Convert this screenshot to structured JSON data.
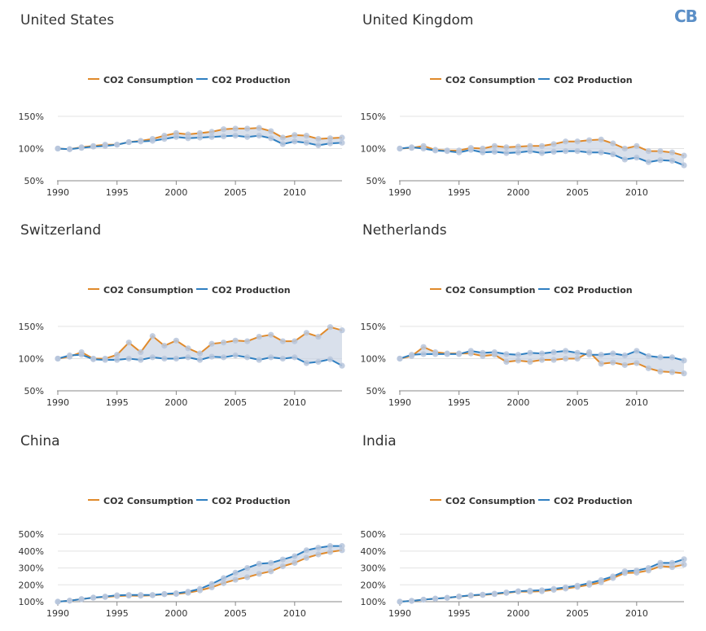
{
  "logo": "CB",
  "legend": {
    "consumption": "CO2 Consumption",
    "production": "CO2 Production"
  },
  "colors": {
    "consumption": "#e08a2b",
    "production": "#2f7fc1",
    "fill": "#c9d3e3",
    "marker": "#b7c6dc"
  },
  "chart_data": [
    {
      "type": "line",
      "title": "United States",
      "x": [
        1990,
        1991,
        1992,
        1993,
        1994,
        1995,
        1996,
        1997,
        1998,
        1999,
        2000,
        2001,
        2002,
        2003,
        2004,
        2005,
        2006,
        2007,
        2008,
        2009,
        2010,
        2011,
        2012,
        2013,
        2014
      ],
      "series": [
        {
          "name": "CO2 Consumption",
          "values": [
            100,
            99,
            102,
            104,
            106,
            106,
            110,
            112,
            115,
            120,
            124,
            122,
            124,
            126,
            130,
            131,
            131,
            132,
            127,
            117,
            121,
            120,
            115,
            116,
            117
          ]
        },
        {
          "name": "CO2 Production",
          "values": [
            100,
            99,
            101,
            103,
            104,
            106,
            110,
            111,
            112,
            115,
            118,
            116,
            117,
            118,
            119,
            120,
            118,
            120,
            116,
            107,
            111,
            109,
            105,
            108,
            109
          ]
        }
      ],
      "xticks": [
        1990,
        1995,
        2000,
        2005,
        2010
      ],
      "yticks": [
        50,
        100,
        150
      ],
      "ytick_labels": [
        "50%",
        "100%",
        "150%"
      ],
      "ylim": [
        50,
        160
      ]
    },
    {
      "type": "line",
      "title": "United Kingdom",
      "x": [
        1990,
        1991,
        1992,
        1993,
        1994,
        1995,
        1996,
        1997,
        1998,
        1999,
        2000,
        2001,
        2002,
        2003,
        2004,
        2005,
        2006,
        2007,
        2008,
        2009,
        2010,
        2011,
        2012,
        2013,
        2014
      ],
      "series": [
        {
          "name": "CO2 Consumption",
          "values": [
            100,
            101,
            104,
            98,
            97,
            97,
            101,
            100,
            104,
            102,
            103,
            104,
            104,
            107,
            111,
            111,
            113,
            114,
            108,
            100,
            104,
            96,
            96,
            94,
            89
          ]
        },
        {
          "name": "CO2 Production",
          "values": [
            100,
            102,
            100,
            97,
            96,
            94,
            98,
            94,
            95,
            93,
            94,
            96,
            93,
            95,
            96,
            96,
            94,
            94,
            91,
            83,
            86,
            79,
            82,
            81,
            74
          ]
        }
      ],
      "xticks": [
        1990,
        1995,
        2000,
        2005,
        2010
      ],
      "yticks": [
        50,
        100,
        150
      ],
      "ytick_labels": [
        "50%",
        "100%",
        "150%"
      ],
      "ylim": [
        50,
        160
      ]
    },
    {
      "type": "line",
      "title": "Switzerland",
      "x": [
        1990,
        1991,
        1992,
        1993,
        1994,
        1995,
        1996,
        1997,
        1998,
        1999,
        2000,
        2001,
        2002,
        2003,
        2004,
        2005,
        2006,
        2007,
        2008,
        2009,
        2010,
        2011,
        2012,
        2013,
        2014
      ],
      "series": [
        {
          "name": "CO2 Consumption",
          "values": [
            100,
            103,
            110,
            100,
            100,
            106,
            125,
            110,
            135,
            120,
            128,
            116,
            108,
            123,
            125,
            128,
            127,
            134,
            137,
            127,
            127,
            140,
            134,
            149,
            144
          ]
        },
        {
          "name": "CO2 Production",
          "values": [
            100,
            105,
            106,
            99,
            98,
            98,
            100,
            98,
            102,
            100,
            100,
            102,
            98,
            103,
            102,
            105,
            102,
            98,
            102,
            100,
            102,
            93,
            95,
            99,
            89
          ]
        }
      ],
      "xticks": [
        1990,
        1995,
        2000,
        2005,
        2010
      ],
      "yticks": [
        50,
        100,
        150
      ],
      "ytick_labels": [
        "50%",
        "100%",
        "150%"
      ],
      "ylim": [
        50,
        160
      ]
    },
    {
      "type": "line",
      "title": "Netherlands",
      "x": [
        1990,
        1991,
        1992,
        1993,
        1994,
        1995,
        1996,
        1997,
        1998,
        1999,
        2000,
        2001,
        2002,
        2003,
        2004,
        2005,
        2006,
        2007,
        2008,
        2009,
        2010,
        2011,
        2012,
        2013,
        2014
      ],
      "series": [
        {
          "name": "CO2 Consumption",
          "values": [
            100,
            104,
            118,
            110,
            108,
            108,
            108,
            104,
            106,
            95,
            97,
            95,
            98,
            98,
            100,
            100,
            110,
            92,
            94,
            90,
            93,
            85,
            80,
            79,
            77
          ]
        },
        {
          "name": "CO2 Production",
          "values": [
            100,
            106,
            107,
            107,
            107,
            107,
            112,
            109,
            110,
            107,
            106,
            109,
            108,
            110,
            112,
            109,
            106,
            106,
            108,
            105,
            112,
            104,
            102,
            102,
            97
          ]
        }
      ],
      "xticks": [
        1990,
        1995,
        2000,
        2005,
        2010
      ],
      "yticks": [
        50,
        100,
        150
      ],
      "ytick_labels": [
        "50%",
        "100%",
        "150%"
      ],
      "ylim": [
        50,
        160
      ]
    },
    {
      "type": "line",
      "title": "China",
      "x": [
        1990,
        1991,
        1992,
        1993,
        1994,
        1995,
        1996,
        1997,
        1998,
        1999,
        2000,
        2001,
        2002,
        2003,
        2004,
        2005,
        2006,
        2007,
        2008,
        2009,
        2010,
        2011,
        2012,
        2013,
        2014
      ],
      "series": [
        {
          "name": "CO2 Consumption",
          "values": [
            100,
            106,
            115,
            124,
            128,
            133,
            136,
            135,
            138,
            144,
            146,
            153,
            167,
            185,
            210,
            230,
            245,
            265,
            280,
            310,
            330,
            360,
            380,
            395,
            405
          ]
        },
        {
          "name": "CO2 Production",
          "values": [
            100,
            106,
            115,
            124,
            130,
            138,
            140,
            140,
            140,
            146,
            150,
            159,
            176,
            205,
            240,
            272,
            300,
            325,
            330,
            350,
            370,
            405,
            420,
            430,
            430
          ]
        }
      ],
      "xticks": [
        1990,
        1995,
        2000,
        2005,
        2010
      ],
      "yticks": [
        100,
        200,
        300,
        400,
        500
      ],
      "ytick_labels": [
        "100%",
        "200%",
        "300%",
        "400%",
        "500%"
      ],
      "ylim": [
        100,
        520
      ]
    },
    {
      "type": "line",
      "title": "India",
      "x": [
        1990,
        1991,
        1992,
        1993,
        1994,
        1995,
        1996,
        1997,
        1998,
        1999,
        2000,
        2001,
        2002,
        2003,
        2004,
        2005,
        2006,
        2007,
        2008,
        2009,
        2010,
        2011,
        2012,
        2013,
        2014
      ],
      "series": [
        {
          "name": "CO2 Consumption",
          "values": [
            100,
            105,
            112,
            118,
            123,
            130,
            136,
            140,
            145,
            152,
            160,
            160,
            162,
            170,
            178,
            188,
            200,
            215,
            240,
            270,
            272,
            285,
            310,
            305,
            320
          ]
        },
        {
          "name": "CO2 Production",
          "values": [
            100,
            105,
            112,
            118,
            123,
            131,
            138,
            142,
            148,
            155,
            162,
            165,
            168,
            176,
            185,
            195,
            210,
            228,
            250,
            280,
            285,
            300,
            330,
            330,
            352
          ]
        }
      ],
      "xticks": [
        1990,
        1995,
        2000,
        2005,
        2010
      ],
      "yticks": [
        100,
        200,
        300,
        400,
        500
      ],
      "ytick_labels": [
        "100%",
        "200%",
        "300%",
        "400%",
        "500%"
      ],
      "ylim": [
        100,
        520
      ]
    }
  ]
}
